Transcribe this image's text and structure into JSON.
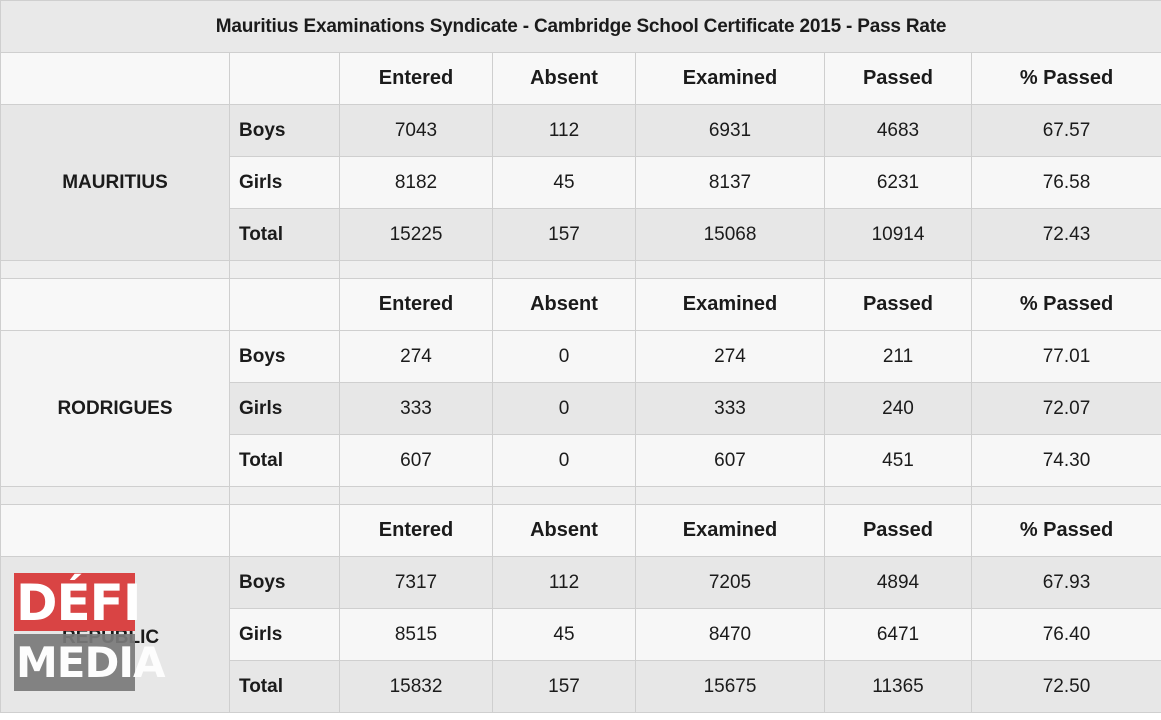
{
  "title": "Mauritius Examinations Syndicate - Cambridge School Certificate 2015 - Pass Rate",
  "columns": [
    "Entered",
    "Absent",
    "Examined",
    "Passed",
    "% Passed"
  ],
  "sections": [
    {
      "region": "MAURITIUS",
      "rows": [
        {
          "label": "Boys",
          "values": [
            "7043",
            "112",
            "6931",
            "4683",
            "67.57"
          ]
        },
        {
          "label": "Girls",
          "values": [
            "8182",
            "45",
            "8137",
            "6231",
            "76.58"
          ]
        },
        {
          "label": "Total",
          "values": [
            "15225",
            "157",
            "15068",
            "10914",
            "72.43"
          ]
        }
      ]
    },
    {
      "region": "RODRIGUES",
      "rows": [
        {
          "label": "Boys",
          "values": [
            "274",
            "0",
            "274",
            "211",
            "77.01"
          ]
        },
        {
          "label": "Girls",
          "values": [
            "333",
            "0",
            "333",
            "240",
            "72.07"
          ]
        },
        {
          "label": "Total",
          "values": [
            "607",
            "0",
            "607",
            "451",
            "74.30"
          ]
        }
      ]
    },
    {
      "region": "REPUBLIC",
      "rows": [
        {
          "label": "Boys",
          "values": [
            "7317",
            "112",
            "7205",
            "4894",
            "67.93"
          ]
        },
        {
          "label": "Girls",
          "values": [
            "8515",
            "45",
            "8470",
            "6471",
            "76.40"
          ]
        },
        {
          "label": "Total",
          "values": [
            "15832",
            "157",
            "15675",
            "11365",
            "72.50"
          ]
        }
      ]
    }
  ],
  "watermark": {
    "line1": "DÉFI",
    "line2": "MEDIA",
    "colors": {
      "top": "#d94444",
      "bottom": "#7a7a7a"
    }
  }
}
